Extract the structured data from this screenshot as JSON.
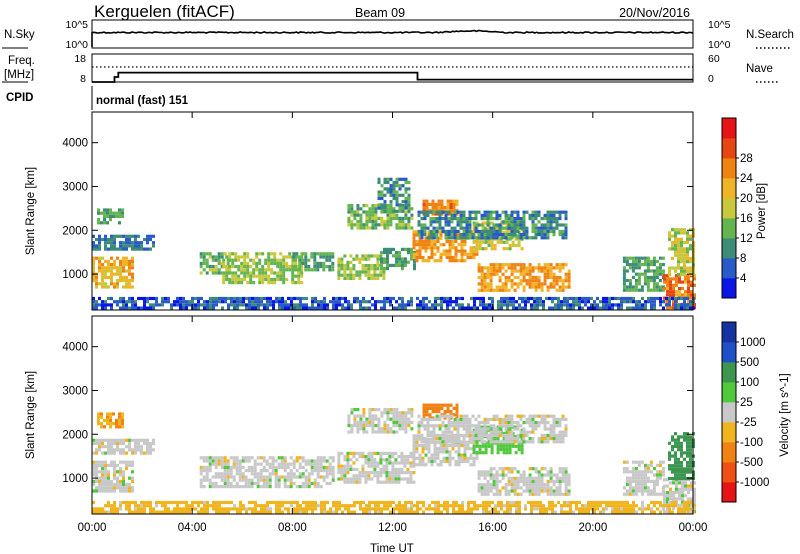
{
  "header": {
    "station": "Kerguelen (fitACF)",
    "beam": "Beam 09",
    "date": "20/Nov/2016"
  },
  "params": {
    "nsky_label": "N.Sky",
    "nsearch_label": "N.Search",
    "freq_label_1": "Freq.",
    "freq_label_2": "[MHz]",
    "nave_label": "Nave",
    "cpid_label": "CPID",
    "cpid_value": "normal (fast) 151",
    "noise_ticks_left": [
      "10^5",
      "10^0"
    ],
    "noise_ticks_right": [
      "10^5",
      "10^0"
    ],
    "freq_ticks": [
      "18",
      "8"
    ],
    "nave_ticks": [
      "60",
      "0"
    ],
    "freq_steps": [
      {
        "t": 0,
        "mhz": 8
      },
      {
        "t": 0.9,
        "mhz": 10.5
      },
      {
        "t": 1.05,
        "mhz": 12.7
      },
      {
        "t": 13.0,
        "mhz": 9.2
      },
      {
        "t": 24,
        "mhz": 9.2
      }
    ],
    "nave_level": 30
  },
  "chart_data": [
    {
      "type": "heatmap",
      "title": "",
      "xlabel": "Time UT",
      "ylabel": "Slant Range [km]",
      "xlim": [
        0,
        24
      ],
      "ylim": [
        180,
        4700
      ],
      "x_ticks": [
        "00:00",
        "04:00",
        "08:00",
        "12:00",
        "16:00",
        "20:00",
        "00:00"
      ],
      "y_ticks": [
        "1000",
        "2000",
        "3000",
        "4000"
      ],
      "colorbar": {
        "label": "Power [dB]",
        "ticks": [
          "4",
          "8",
          "12",
          "16",
          "20",
          "24",
          "28"
        ],
        "colors": [
          "#0a14e6",
          "#285ac8",
          "#3c8c78",
          "#64b450",
          "#c8c83c",
          "#f0b428",
          "#f08214",
          "#e64614",
          "#e61414"
        ]
      },
      "regions": [
        {
          "t0": 0.0,
          "t1": 1.6,
          "r0": 700,
          "r1": 1400,
          "v": 22
        },
        {
          "t0": 0.2,
          "t1": 1.2,
          "r0": 2200,
          "r1": 2500,
          "v": 12
        },
        {
          "t0": 0.0,
          "t1": 2.4,
          "r0": 1550,
          "r1": 1900,
          "v": 8
        },
        {
          "t0": 4.3,
          "t1": 5.4,
          "r0": 1050,
          "r1": 1500,
          "v": 14
        },
        {
          "t0": 5.2,
          "t1": 8.4,
          "r0": 800,
          "r1": 1500,
          "v": 16
        },
        {
          "t0": 8.0,
          "t1": 9.6,
          "r0": 1100,
          "r1": 1500,
          "v": 12
        },
        {
          "t0": 9.8,
          "t1": 11.6,
          "r0": 900,
          "r1": 1450,
          "v": 16
        },
        {
          "t0": 11.5,
          "t1": 12.9,
          "r0": 1100,
          "r1": 1600,
          "v": 12
        },
        {
          "t0": 10.2,
          "t1": 12.8,
          "r0": 2050,
          "r1": 2600,
          "v": 14
        },
        {
          "t0": 11.4,
          "t1": 12.6,
          "r0": 2400,
          "r1": 3200,
          "v": 10
        },
        {
          "t0": 12.8,
          "t1": 15.4,
          "r0": 1300,
          "r1": 2000,
          "v": 24
        },
        {
          "t0": 13.2,
          "t1": 14.6,
          "r0": 2350,
          "r1": 2700,
          "v": 25
        },
        {
          "t0": 15.2,
          "t1": 17.2,
          "r0": 1550,
          "r1": 2200,
          "v": 18
        },
        {
          "t0": 15.4,
          "t1": 19.0,
          "r0": 650,
          "r1": 1250,
          "v": 24
        },
        {
          "t0": 13.0,
          "t1": 18.9,
          "r0": 1800,
          "r1": 2450,
          "v": 10
        },
        {
          "t0": 21.2,
          "t1": 22.8,
          "r0": 600,
          "r1": 1400,
          "v": 12
        },
        {
          "t0": 22.8,
          "t1": 24.0,
          "r0": 250,
          "r1": 1000,
          "v": 27
        },
        {
          "t0": 23.0,
          "t1": 24.0,
          "r0": 1000,
          "r1": 2050,
          "v": 18
        },
        {
          "t0": 0.0,
          "t1": 24.0,
          "r0": 190,
          "r1": 480,
          "v": 6
        }
      ]
    },
    {
      "type": "heatmap",
      "title": "",
      "xlabel": "Time UT",
      "ylabel": "Slant Range [km]",
      "xlim": [
        0,
        24
      ],
      "ylim": [
        180,
        4700
      ],
      "x_ticks": [
        "00:00",
        "04:00",
        "08:00",
        "12:00",
        "16:00",
        "20:00",
        "00:00"
      ],
      "y_ticks": [
        "1000",
        "2000",
        "3000",
        "4000"
      ],
      "colorbar": {
        "label": "Velocity [m s^-1]",
        "ticks": [
          "1000",
          "500",
          "100",
          "25",
          "-25",
          "-100",
          "-500",
          "-1000"
        ],
        "colors": [
          "#1432a0",
          "#1e50c8",
          "#3c9650",
          "#50c83c",
          "#c8c8c8",
          "#f0b41e",
          "#f08214",
          "#f05014",
          "#e61414"
        ]
      },
      "regions": [
        {
          "t0": 0.0,
          "t1": 1.6,
          "r0": 700,
          "r1": 1400,
          "v": 0
        },
        {
          "t0": 0.0,
          "t1": 2.4,
          "r0": 1550,
          "r1": 1900,
          "v": 0
        },
        {
          "t0": 0.2,
          "t1": 1.2,
          "r0": 2200,
          "r1": 2500,
          "v": -100
        },
        {
          "t0": 4.3,
          "t1": 9.6,
          "r0": 800,
          "r1": 1500,
          "v": 0
        },
        {
          "t0": 9.8,
          "t1": 12.9,
          "r0": 900,
          "r1": 1600,
          "v": 0
        },
        {
          "t0": 10.2,
          "t1": 12.8,
          "r0": 2050,
          "r1": 2600,
          "v": 0
        },
        {
          "t0": 12.8,
          "t1": 15.4,
          "r0": 1300,
          "r1": 2000,
          "v": 0
        },
        {
          "t0": 13.2,
          "t1": 14.6,
          "r0": 2350,
          "r1": 2700,
          "v": -300
        },
        {
          "t0": 15.2,
          "t1": 17.2,
          "r0": 1550,
          "r1": 2200,
          "v": 60
        },
        {
          "t0": 15.4,
          "t1": 19.0,
          "r0": 650,
          "r1": 1250,
          "v": 0
        },
        {
          "t0": 13.0,
          "t1": 18.9,
          "r0": 1800,
          "r1": 2450,
          "v": 0
        },
        {
          "t0": 21.2,
          "t1": 22.8,
          "r0": 600,
          "r1": 1400,
          "v": 0
        },
        {
          "t0": 22.8,
          "t1": 24.0,
          "r0": 250,
          "r1": 1000,
          "v": 0
        },
        {
          "t0": 23.0,
          "t1": 24.0,
          "r0": 1000,
          "r1": 2050,
          "v": 300
        },
        {
          "t0": 0.0,
          "t1": 24.0,
          "r0": 190,
          "r1": 480,
          "v": -50
        }
      ]
    }
  ]
}
